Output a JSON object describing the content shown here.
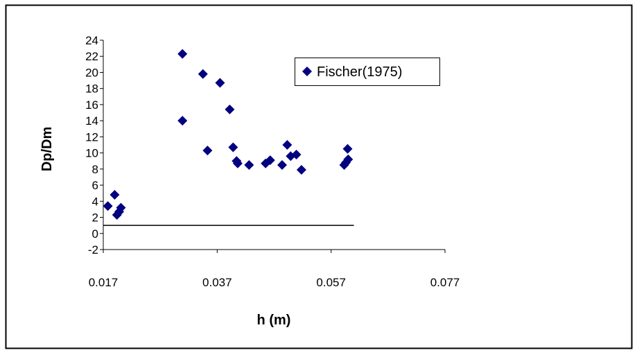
{
  "chart_data": {
    "type": "scatter",
    "xlabel": "h (m)",
    "ylabel": "Dp/Dm",
    "xlim": [
      0.017,
      0.077
    ],
    "ylim": [
      -2,
      24
    ],
    "x_ticks": [
      0.017,
      0.037,
      0.057,
      0.077
    ],
    "x_tick_labels": [
      "0.017",
      "0.037",
      "0.057",
      "0.077"
    ],
    "y_ticks": [
      -2,
      0,
      2,
      4,
      6,
      8,
      10,
      12,
      14,
      16,
      18,
      20,
      22,
      24
    ],
    "y_tick_labels": [
      "-2",
      "0",
      "2",
      "4",
      "6",
      "8",
      "10",
      "12",
      "14",
      "16",
      "18",
      "20",
      "22",
      "24"
    ],
    "grid": false,
    "legend_position": "top-right",
    "series": [
      {
        "name": "Fischer(1975)",
        "color": "#000080",
        "marker": "diamond",
        "x": [
          0.0178,
          0.019,
          0.0194,
          0.0198,
          0.0201,
          0.0309,
          0.0309,
          0.0345,
          0.0353,
          0.0375,
          0.0392,
          0.0398,
          0.0404,
          0.0406,
          0.0426,
          0.0455,
          0.0463,
          0.0484,
          0.0493,
          0.0499,
          0.0509,
          0.0518,
          0.0593,
          0.0596,
          0.0599,
          0.06
        ],
        "y": [
          3.4,
          4.8,
          2.3,
          2.7,
          3.2,
          22.3,
          14.0,
          19.8,
          10.3,
          18.7,
          15.4,
          10.7,
          9.0,
          8.7,
          8.5,
          8.7,
          9.1,
          8.5,
          11.0,
          9.6,
          9.8,
          7.9,
          8.5,
          8.8,
          10.5,
          9.2
        ]
      }
    ],
    "reference_line": {
      "x": [
        0.017,
        0.061
      ],
      "y": [
        1,
        1
      ],
      "color": "#000000"
    }
  }
}
